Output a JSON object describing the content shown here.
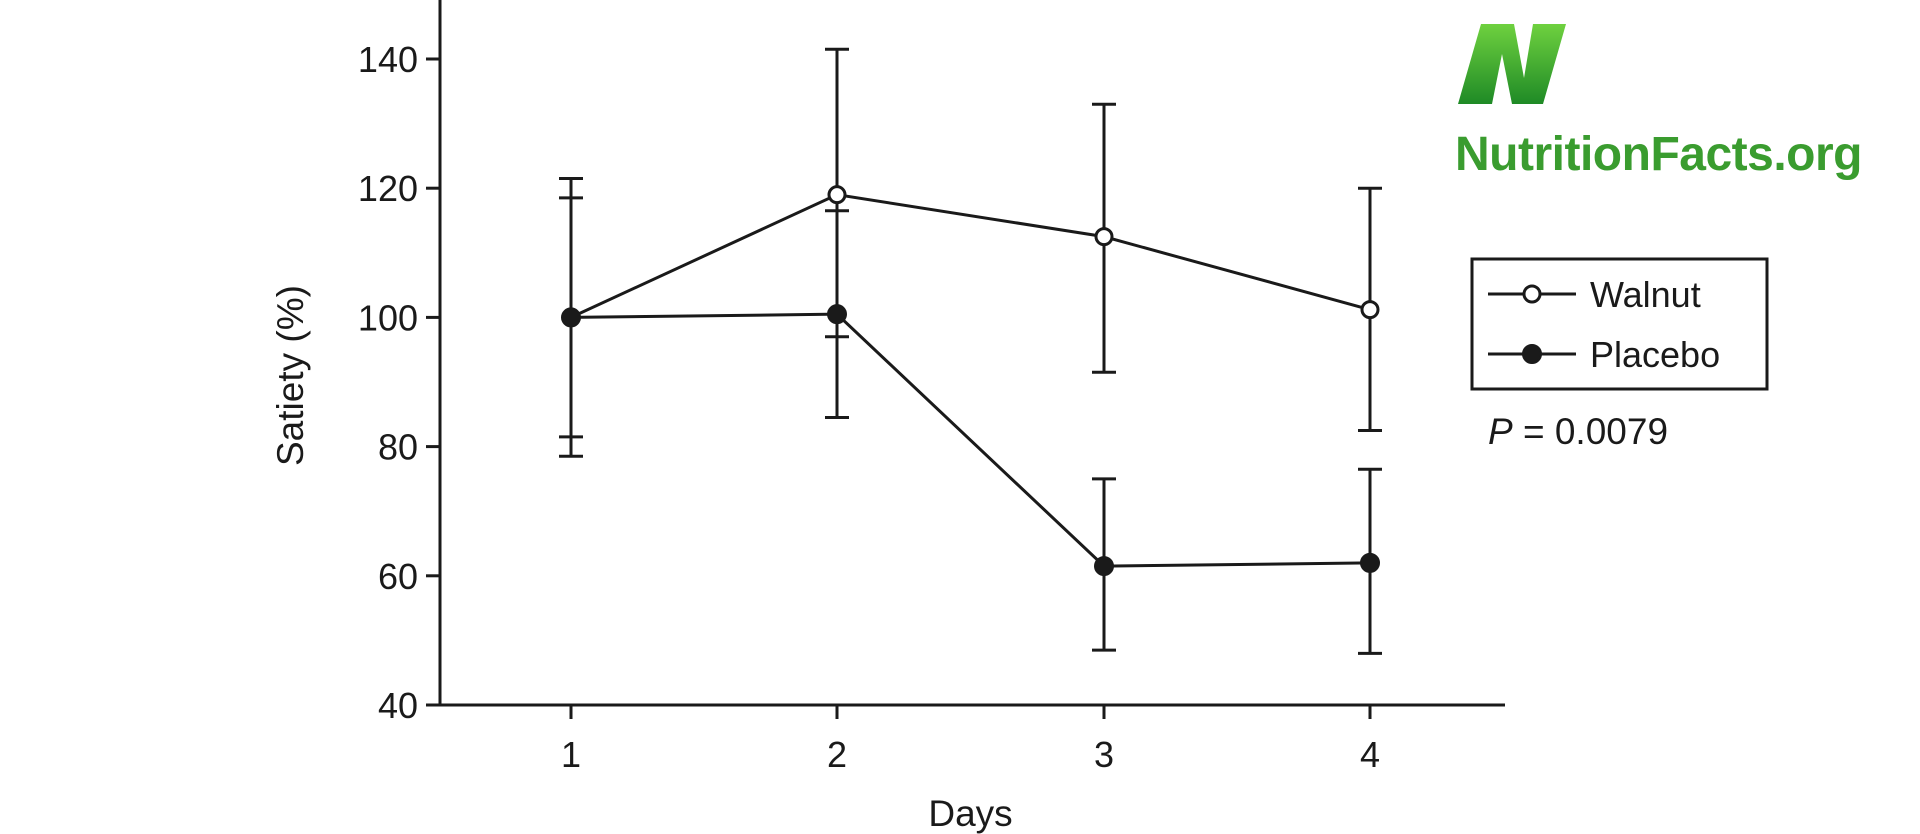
{
  "chart_data": {
    "type": "line",
    "xlabel": "Days",
    "ylabel": "Satiety (%)",
    "x": [
      1,
      2,
      3,
      4
    ],
    "xlim": [
      0.5,
      4.5
    ],
    "ylim": [
      40,
      150
    ],
    "yticks": [
      40,
      60,
      80,
      100,
      120,
      140
    ],
    "xticks": [
      1,
      2,
      3,
      4
    ],
    "grid": false,
    "legend_position": "right",
    "series": [
      {
        "name": "Walnut",
        "marker": "open-circle",
        "values": [
          100,
          119,
          112.5,
          101.2
        ],
        "error_upper": [
          118.5,
          141.5,
          133,
          120
        ],
        "error_lower": [
          81.5,
          84.5,
          91.5,
          82.5
        ]
      },
      {
        "name": "Placebo",
        "marker": "filled-circle",
        "values": [
          100,
          100.5,
          61.5,
          62
        ],
        "error_upper": [
          121.5,
          116.5,
          75,
          76.5
        ],
        "error_lower": [
          78.5,
          97,
          48.5,
          48
        ]
      }
    ],
    "annotation": {
      "label": "P",
      "value": " = 0.0079"
    }
  },
  "logo": {
    "text": "NutritionFacts.org",
    "color": "#3a9c2f"
  },
  "colors": {
    "line": "#1a1a1a",
    "background": "#ffffff"
  }
}
